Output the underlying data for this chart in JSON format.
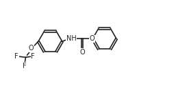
{
  "background_color": "#ffffff",
  "line_color": "#222222",
  "line_width": 1.2,
  "font_size": 7.0,
  "figsize": [
    2.57,
    1.41
  ],
  "dpi": 100,
  "xlim": [
    0,
    10
  ],
  "ylim": [
    0,
    5.5
  ]
}
